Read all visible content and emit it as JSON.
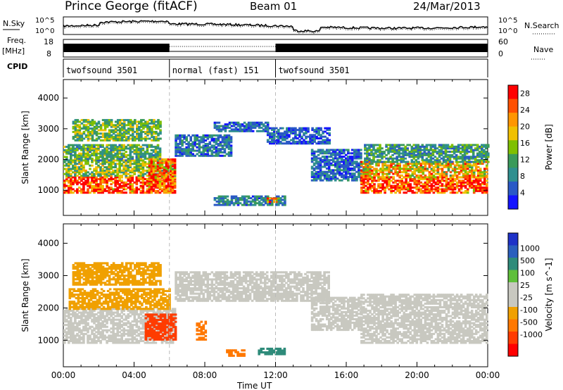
{
  "header": {
    "station": "Prince George (fitACF)",
    "beam": "Beam 01",
    "date": "24/Mar/2013"
  },
  "noise_panel": {
    "left_label": "N.Sky",
    "right_label": "N.Search",
    "ticks_left": [
      "10^5",
      "10^0"
    ],
    "ticks_right": [
      "10^5",
      "10^0"
    ]
  },
  "freq_panel": {
    "left_label_1": "Freq.",
    "left_label_2": "[MHz]",
    "ticks_left": [
      "18",
      "8"
    ],
    "ticks_right": [
      "60",
      "0"
    ],
    "right_label": "Nave"
  },
  "cpid": {
    "label": "CPID",
    "segments": [
      {
        "name": "twofsound 3501",
        "start_h": 0,
        "end_h": 6
      },
      {
        "name": "normal (fast) 151",
        "start_h": 6,
        "end_h": 12
      },
      {
        "name": "twofsound 3501",
        "start_h": 12,
        "end_h": 24
      }
    ]
  },
  "colors": {
    "power": [
      "#1414ff",
      "#2a59c6",
      "#2f8f8f",
      "#3a9a5a",
      "#7fc000",
      "#f0c000",
      "#ff9600",
      "#ff5000",
      "#ff0000"
    ],
    "velocity": [
      "#1e32c8",
      "#2a5fbe",
      "#2e8b7a",
      "#5fbf3a",
      "#c8c8c0",
      "#c8c8c0",
      "#f0a000",
      "#ff7800",
      "#ff3c00",
      "#ff0000"
    ]
  },
  "chart_data": [
    {
      "type": "heatmap",
      "title": "",
      "xlabel": "Time UT",
      "ylabel": "Slant Range [km]",
      "xlim": [
        0,
        24
      ],
      "ylim": [
        180,
        4600
      ],
      "x_ticks": [
        "00:00",
        "04:00",
        "08:00",
        "12:00",
        "16:00",
        "20:00",
        "00:00"
      ],
      "y_ticks": [
        "1000",
        "2000",
        "3000",
        "4000"
      ],
      "colorbar_label": "Power [dB]",
      "colorbar_ticks": [
        "4",
        "8",
        "12",
        "16",
        "20",
        "24",
        "28"
      ],
      "colorbar_range": [
        0,
        30
      ],
      "patches": [
        {
          "t0": 0.0,
          "t1": 6.3,
          "r0": 900,
          "r1": 1450,
          "value": 26
        },
        {
          "t0": 0.0,
          "t1": 6.3,
          "r0": 1450,
          "r1": 1950,
          "value": 14
        },
        {
          "t0": 0.0,
          "t1": 5.5,
          "r0": 1950,
          "r1": 2450,
          "value": 12
        },
        {
          "t0": 0.5,
          "t1": 5.5,
          "r0": 2600,
          "r1": 3300,
          "value": 13
        },
        {
          "t0": 4.8,
          "t1": 6.3,
          "r0": 1100,
          "r1": 2000,
          "value": 24
        },
        {
          "t0": 6.3,
          "t1": 9.5,
          "r0": 2100,
          "r1": 2800,
          "value": 7
        },
        {
          "t0": 8.5,
          "t1": 11.5,
          "r0": 2900,
          "r1": 3200,
          "value": 6
        },
        {
          "t0": 11.5,
          "t1": 15.0,
          "r0": 2500,
          "r1": 3000,
          "value": 5
        },
        {
          "t0": 14.0,
          "t1": 16.8,
          "r0": 1300,
          "r1": 2300,
          "value": 6
        },
        {
          "t0": 16.8,
          "t1": 24.0,
          "r0": 900,
          "r1": 1400,
          "value": 26
        },
        {
          "t0": 16.8,
          "t1": 24.0,
          "r0": 1400,
          "r1": 1900,
          "value": 20
        },
        {
          "t0": 17.0,
          "t1": 24.0,
          "r0": 1900,
          "r1": 2500,
          "value": 10
        },
        {
          "t0": 8.5,
          "t1": 12.5,
          "r0": 500,
          "r1": 800,
          "value": 8
        },
        {
          "t0": 11.5,
          "t1": 12.2,
          "r0": 600,
          "r1": 750,
          "value": 22
        }
      ]
    },
    {
      "type": "heatmap",
      "title": "",
      "xlabel": "Time UT",
      "ylabel": "Slant Range [km]",
      "xlim": [
        0,
        24
      ],
      "ylim": [
        180,
        4600
      ],
      "x_ticks": [
        "00:00",
        "04:00",
        "08:00",
        "12:00",
        "16:00",
        "20:00",
        "00:00"
      ],
      "y_ticks": [
        "1000",
        "2000",
        "3000",
        "4000"
      ],
      "colorbar_label": "Velocity [m s^-1]",
      "colorbar_ticks": [
        "1000",
        "500",
        "100",
        "25",
        "-25",
        "-100",
        "-500",
        "-1000"
      ],
      "patches": [
        {
          "t0": 0.0,
          "t1": 6.3,
          "r0": 900,
          "r1": 1950,
          "value": 0
        },
        {
          "t0": 0.3,
          "t1": 6.0,
          "r0": 1950,
          "r1": 2600,
          "value": -60
        },
        {
          "t0": 0.5,
          "t1": 5.5,
          "r0": 2700,
          "r1": 3400,
          "value": -60
        },
        {
          "t0": 4.6,
          "t1": 6.3,
          "r0": 1000,
          "r1": 1800,
          "value": -700
        },
        {
          "t0": 6.3,
          "t1": 15.0,
          "r0": 2200,
          "r1": 3100,
          "value": 0
        },
        {
          "t0": 14.0,
          "t1": 16.8,
          "r0": 1300,
          "r1": 2300,
          "value": 0
        },
        {
          "t0": 16.8,
          "t1": 24.0,
          "r0": 900,
          "r1": 2400,
          "value": 0
        },
        {
          "t0": 7.5,
          "t1": 8.0,
          "r0": 1000,
          "r1": 1600,
          "value": -300
        },
        {
          "t0": 9.2,
          "t1": 10.2,
          "r0": 500,
          "r1": 700,
          "value": -300
        },
        {
          "t0": 11.0,
          "t1": 12.5,
          "r0": 550,
          "r1": 750,
          "value": 300
        }
      ]
    }
  ]
}
